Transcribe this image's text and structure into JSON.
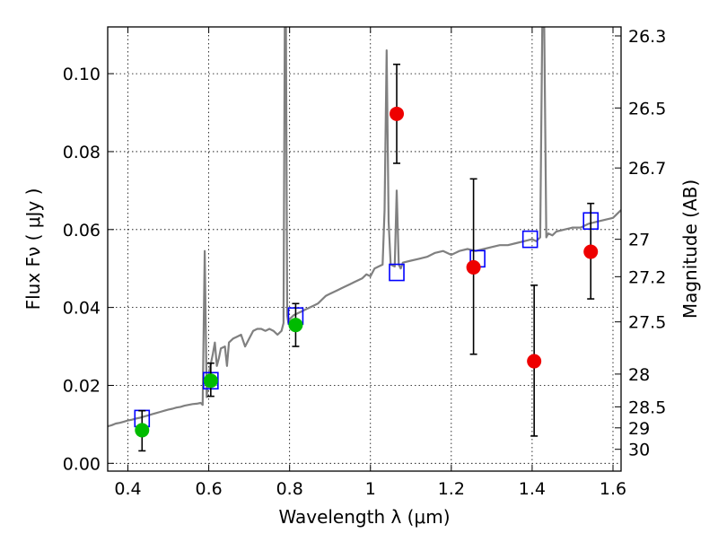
{
  "chart_data": {
    "type": "scatter",
    "title": "",
    "xlabel": "Wavelength  λ (μm)",
    "ylabel": "Flux  Fν  ( μJy )",
    "y2label": "Magnitude (AB)",
    "xlim": [
      0.35,
      1.62
    ],
    "ylim": [
      -0.002,
      0.112
    ],
    "grid": true,
    "xticks": [
      0.4,
      0.6,
      0.8,
      1.0,
      1.2,
      1.4,
      1.6
    ],
    "xtick_labels": [
      "0.4",
      "0.6",
      "0.8",
      "1",
      "1.2",
      "1.4",
      "1.6"
    ],
    "yticks": [
      0.0,
      0.02,
      0.04,
      0.06,
      0.08,
      0.1
    ],
    "ytick_labels": [
      "0.00",
      "0.02",
      "0.04",
      "0.06",
      "0.08",
      "0.10"
    ],
    "y2ticks": [
      {
        "label": "26.3",
        "flux": 0.1097
      },
      {
        "label": "26.5",
        "flux": 0.0912
      },
      {
        "label": "26.7",
        "flux": 0.0758
      },
      {
        "label": "27",
        "flux": 0.0575
      },
      {
        "label": "27.2",
        "flux": 0.0479
      },
      {
        "label": "27.5",
        "flux": 0.0363
      },
      {
        "label": "28",
        "flux": 0.0229
      },
      {
        "label": "28.5",
        "flux": 0.0145
      },
      {
        "label": "29",
        "flux": 0.0091
      },
      {
        "label": "30",
        "flux": 0.0036
      }
    ],
    "colors": {
      "spectrum": "#808080",
      "model_boxes": "#0000ff",
      "detections": "#00bb00",
      "upper_points": "#ee0000",
      "errorbars": "#000000"
    },
    "series": [
      {
        "kind": "spectrum",
        "x": [
          0.35,
          0.36,
          0.37,
          0.38,
          0.39,
          0.4,
          0.41,
          0.42,
          0.43,
          0.44,
          0.45,
          0.46,
          0.47,
          0.48,
          0.49,
          0.5,
          0.51,
          0.52,
          0.53,
          0.54,
          0.55,
          0.56,
          0.57,
          0.58,
          0.585,
          0.59,
          0.595,
          0.6,
          0.61,
          0.615,
          0.62,
          0.625,
          0.63,
          0.64,
          0.645,
          0.65,
          0.66,
          0.67,
          0.68,
          0.69,
          0.7,
          0.71,
          0.72,
          0.73,
          0.74,
          0.75,
          0.76,
          0.77,
          0.78,
          0.785,
          0.788,
          0.791,
          0.794,
          0.797,
          0.8,
          0.81,
          0.82,
          0.83,
          0.84,
          0.85,
          0.86,
          0.87,
          0.88,
          0.89,
          0.9,
          0.91,
          0.92,
          0.93,
          0.94,
          0.95,
          0.96,
          0.97,
          0.98,
          0.99,
          1.0,
          1.01,
          1.02,
          1.03,
          1.035,
          1.04,
          1.045,
          1.05,
          1.06,
          1.065,
          1.07,
          1.075,
          1.08,
          1.1,
          1.12,
          1.14,
          1.16,
          1.18,
          1.2,
          1.22,
          1.24,
          1.26,
          1.28,
          1.3,
          1.32,
          1.34,
          1.36,
          1.38,
          1.4,
          1.41,
          1.42,
          1.425,
          1.43,
          1.435,
          1.44,
          1.45,
          1.46,
          1.48,
          1.5,
          1.52,
          1.54,
          1.56,
          1.58,
          1.6,
          1.62
        ],
        "y": [
          0.0095,
          0.0098,
          0.0102,
          0.0104,
          0.0107,
          0.011,
          0.0112,
          0.0115,
          0.0117,
          0.012,
          0.0123,
          0.0126,
          0.0129,
          0.0132,
          0.0135,
          0.0138,
          0.014,
          0.0143,
          0.0145,
          0.0148,
          0.015,
          0.0152,
          0.0153,
          0.0155,
          0.015,
          0.0545,
          0.017,
          0.023,
          0.028,
          0.031,
          0.025,
          0.027,
          0.0295,
          0.03,
          0.025,
          0.031,
          0.032,
          0.0325,
          0.033,
          0.03,
          0.032,
          0.034,
          0.0345,
          0.0345,
          0.034,
          0.0345,
          0.034,
          0.033,
          0.034,
          0.036,
          0.112,
          0.112,
          0.038,
          0.036,
          0.037,
          0.038,
          0.0385,
          0.039,
          0.0395,
          0.04,
          0.0405,
          0.041,
          0.042,
          0.043,
          0.0435,
          0.044,
          0.0445,
          0.045,
          0.0455,
          0.046,
          0.0465,
          0.047,
          0.0475,
          0.0485,
          0.048,
          0.05,
          0.0505,
          0.051,
          0.065,
          0.106,
          0.062,
          0.051,
          0.0505,
          0.07,
          0.051,
          0.05,
          0.0515,
          0.052,
          0.0525,
          0.053,
          0.054,
          0.0545,
          0.0535,
          0.0545,
          0.055,
          0.0545,
          0.055,
          0.0555,
          0.056,
          0.056,
          0.0565,
          0.057,
          0.0575,
          0.057,
          0.058,
          0.112,
          0.112,
          0.058,
          0.059,
          0.0585,
          0.0595,
          0.06,
          0.0605,
          0.0605,
          0.0615,
          0.062,
          0.0625,
          0.063,
          0.065
        ]
      },
      {
        "kind": "model_boxes",
        "x": [
          0.435,
          0.605,
          0.815,
          1.065,
          1.265,
          1.395,
          1.545
        ],
        "y": [
          0.0115,
          0.0212,
          0.0378,
          0.049,
          0.0525,
          0.0575,
          0.0622
        ]
      },
      {
        "kind": "detections",
        "x": [
          0.435,
          0.605,
          0.815
        ],
        "y": [
          0.0085,
          0.0212,
          0.0355
        ],
        "err_low": [
          0.0053,
          0.004,
          0.0055
        ],
        "err_high": [
          0.005,
          0.0045,
          0.0055
        ]
      },
      {
        "kind": "upper_points",
        "x": [
          1.065,
          1.255,
          1.405,
          1.545
        ],
        "y": [
          0.0897,
          0.0503,
          0.0262,
          0.0543
        ],
        "err_low": [
          0.0127,
          0.0223,
          0.0192,
          0.0121
        ],
        "err_high": [
          0.0127,
          0.0227,
          0.0195,
          0.0124
        ]
      }
    ]
  }
}
